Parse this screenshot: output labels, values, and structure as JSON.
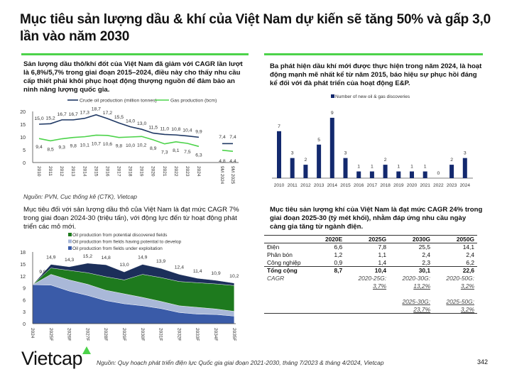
{
  "title": "Mục tiêu sản lượng dầu & khí của Việt Nam dự kiến sẽ tăng 50% và gấp 3,0 lần vào năm 2030",
  "colors": {
    "accent": "#4cd34a",
    "navy": "#1f3864",
    "green": "#1e7a1e",
    "light_blue": "#a9b8d8",
    "mid_blue": "#3a5ba8",
    "dark_navy": "#1c2f5a",
    "bar": "#13296e",
    "gas": "#4cd34a"
  },
  "left_top": {
    "text": "Sản lượng dầu thô/khí đốt của Việt Nam đã giảm với CAGR lần lượt là 6,8%/5,7% trong giai đoạn 2015–2024, điều này cho thấy nhu cầu cấp thiết phải khôi phục hoạt động thượng nguồn để đảm bảo an ninh năng lượng quốc gia.",
    "source": "Nguồn: PVN, Cục thống kê (CTK), Vietcap"
  },
  "right_top": {
    "text": "Ba phát hiện dầu khí mới được thực hiện trong năm 2024, là hoạt động mạnh mẽ nhất kể từ năm 2015, báo hiệu sự phục hồi đáng kể đối với đà phát triển của hoạt động E&P."
  },
  "left_bottom": {
    "text": "Mục tiêu đối với sản lượng dầu thô của Việt Nam là đạt mức CAGR 7% trong giai đoạn 2024-30 (triệu tấn), với động lực đến từ hoạt động phát triển các mỏ mới."
  },
  "right_bottom": {
    "text": "Mục tiêu sản lượng khí của Việt Nam là đạt mức CAGR 24% trong giai đoạn 2025-30 (tỷ mét khối), nhằm đáp ứng nhu cầu ngày càng gia tăng từ ngành điện."
  },
  "chart_data": [
    {
      "type": "line",
      "categories": [
        "2010",
        "2011",
        "2012",
        "2013",
        "2014",
        "2015",
        "2016",
        "2017",
        "2018",
        "2019",
        "2020",
        "2021",
        "2022",
        "2023",
        "2024",
        "9M 2024",
        "9M 2025"
      ],
      "series": [
        {
          "name": "Crude oil production (million tonnes)",
          "values": [
            15.0,
            15.2,
            16.7,
            16.7,
            17.3,
            18.7,
            17.2,
            15.5,
            14.0,
            13.0,
            11.5,
            11.0,
            10.8,
            10.4,
            9.9,
            7.4,
            7.4
          ],
          "labels": [
            "15,0",
            "15,2",
            "16,7",
            "16,7",
            "17,3",
            "18,7",
            "17,2",
            "15,5",
            "14,0",
            "13,0",
            "11,5",
            "11,0",
            "10,8",
            "10,4",
            "9,9",
            "7,4",
            "7,4"
          ]
        },
        {
          "name": "Gas production (bcm)",
          "values": [
            9.4,
            8.5,
            9.3,
            9.8,
            10.1,
            10.7,
            10.6,
            9.8,
            10.0,
            10.2,
            8.9,
            7.3,
            8.1,
            7.5,
            6.3,
            4.8,
            4.4
          ],
          "labels": [
            "9,4",
            "8,5",
            "9,3",
            "9,8",
            "10,1",
            "10,7",
            "10,6",
            "9,8",
            "10,0",
            "10,2",
            "8,9",
            "7,3",
            "8,1",
            "7,5",
            "6,3",
            "4,8",
            "4,4"
          ]
        }
      ],
      "yticks": [
        "0",
        "5",
        "10",
        "15",
        "20"
      ],
      "ylim": [
        0,
        20
      ],
      "legend": "top"
    },
    {
      "type": "bar",
      "categories": [
        "2010",
        "2011",
        "2012",
        "2013",
        "2014",
        "2015",
        "2016",
        "2017",
        "2018",
        "2019",
        "2020",
        "2021",
        "2022",
        "2023",
        "2024"
      ],
      "series": [
        {
          "name": "Number of new oil & gas discoveries",
          "values": [
            7,
            3,
            2,
            5,
            9,
            3,
            1,
            1,
            2,
            1,
            1,
            1,
            0,
            2,
            3
          ]
        }
      ],
      "legend": "top"
    },
    {
      "type": "area",
      "stacked": true,
      "categories": [
        "2024",
        "2025F",
        "2026F",
        "2027F",
        "2028F",
        "2029F",
        "2030F",
        "2031F",
        "2032F",
        "2033F",
        "2034F",
        "2035F"
      ],
      "series": [
        {
          "name": "Oil production from fields under exploitation",
          "values": [
            9.8,
            9.7,
            8.2,
            7.1,
            5.8,
            5.0,
            4.5,
            3.8,
            2.8,
            2.4,
            2.3,
            1.9
          ]
        },
        {
          "name": "Oil production from fields having potential to develop",
          "values": [
            0,
            2.7,
            2.8,
            2.8,
            2.6,
            2.5,
            2.1,
            1.8,
            1.7,
            1.7,
            1.4,
            1.2
          ]
        },
        {
          "name": "Oil production from potential discovered fields",
          "values": [
            0,
            1.6,
            2.4,
            2.9,
            3.4,
            3.5,
            5.8,
            6.0,
            6.1,
            6.2,
            6.3,
            6.5
          ]
        },
        {
          "values": [
            0,
            0.9,
            0.9,
            2.4,
            3.0,
            2.0,
            2.5,
            2.3,
            1.8,
            1.1,
            0.9,
            0.6
          ]
        }
      ],
      "totals": [
        "9,8",
        "14,9",
        "14,3",
        "15,2",
        "14,8",
        "13,0",
        "14,9",
        "13,9",
        "12,4",
        "11,4",
        "10,9",
        "10,2"
      ],
      "yticks": [
        "0",
        "3",
        "6",
        "9",
        "12",
        "15",
        "18"
      ],
      "ylim": [
        0,
        18
      ],
      "legend": "top"
    },
    {
      "type": "table",
      "headers": [
        "",
        "2020E",
        "2025G",
        "2030G",
        "2050G"
      ],
      "rows": [
        [
          "Điện",
          "6,6",
          "7,8",
          "25,5",
          "14,1"
        ],
        [
          "Phân bón",
          "1,2",
          "1,1",
          "2,4",
          "2,4"
        ],
        [
          "Công nghiệp",
          "0,9",
          "1,4",
          "2,3",
          "6,2"
        ],
        [
          "Tổng cộng",
          "8,7",
          "10,4",
          "30,1",
          "22,6"
        ],
        [
          "CAGR",
          "",
          "2020-25G:",
          "2020-30G:",
          "2020-50G:"
        ],
        [
          "",
          "",
          "3,7%",
          "13,2%",
          "3,2%"
        ],
        [
          "",
          "",
          "",
          "",
          ""
        ],
        [
          "",
          "",
          "",
          "2025-30G:",
          "2025-50G:"
        ],
        [
          "",
          "",
          "",
          "23,7%",
          "3,2%"
        ]
      ]
    }
  ],
  "footer": {
    "logo": "Vietcap",
    "source": "Nguồn: Quy hoạch phát triển điện lực Quốc gia giai đoạn 2021-2030, tháng 7/2023 & tháng 4/2024, Vietcap",
    "page": "342"
  }
}
